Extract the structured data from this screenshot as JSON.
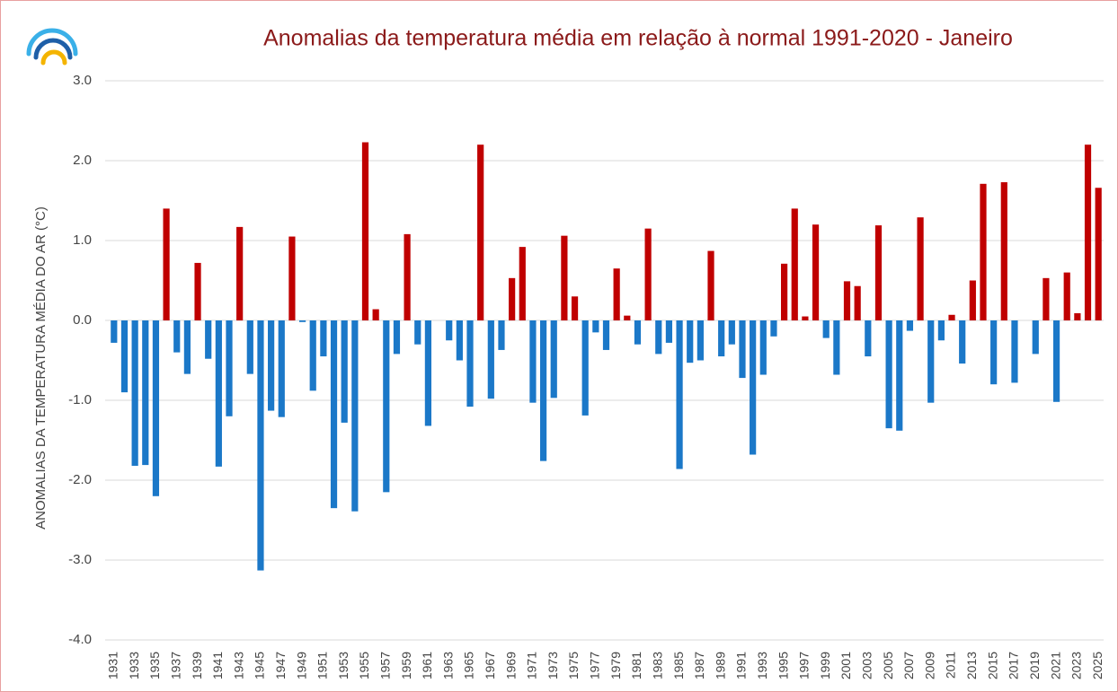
{
  "chart_data": {
    "type": "bar",
    "title": "Anomalias da temperatura média em relação à normal 1991-2020 - Janeiro",
    "y_label": "ANOMALIAS DA TEMPERATURA MÉDIA DO AR (°C)",
    "categories": [
      "1931",
      null,
      "1933",
      null,
      "1935",
      null,
      "1937",
      null,
      "1939",
      null,
      "1941",
      null,
      "1943",
      null,
      "1945",
      null,
      "1947",
      null,
      "1949",
      null,
      "1951",
      null,
      "1953",
      null,
      "1955",
      null,
      "1957",
      null,
      "1959",
      null,
      "1961",
      null,
      "1963",
      null,
      "1965",
      null,
      "1967",
      null,
      "1969",
      null,
      "1971",
      null,
      "1973",
      null,
      "1975",
      null,
      "1977",
      null,
      "1979",
      null,
      "1981",
      null,
      "1983",
      null,
      "1985",
      null,
      "1987",
      null,
      "1989",
      null,
      "1991",
      null,
      "1993",
      null,
      "1995",
      null,
      "1997",
      null,
      "1999",
      null,
      "2001",
      null,
      "2003",
      null,
      "2005",
      null,
      "2007",
      null,
      "2009",
      null,
      "2011",
      null,
      "2013",
      null,
      "2015",
      null,
      "2017",
      null,
      "2019",
      null,
      "2021",
      null,
      "2023",
      null,
      "2025"
    ],
    "values": [
      -0.28,
      -0.9,
      -1.82,
      -1.81,
      -2.2,
      1.4,
      -0.4,
      -0.67,
      0.72,
      -0.48,
      -1.83,
      -1.2,
      1.17,
      -0.67,
      -3.13,
      -1.13,
      -1.21,
      1.05,
      -0.02,
      -0.88,
      -0.45,
      -2.35,
      -1.28,
      -2.39,
      2.23,
      0.14,
      -2.15,
      -0.42,
      1.08,
      -0.3,
      -1.32,
      0,
      -0.25,
      -0.5,
      -1.08,
      2.2,
      -0.98,
      -0.37,
      0.53,
      0.92,
      -1.03,
      -1.76,
      -0.97,
      1.06,
      0.3,
      -1.19,
      -0.15,
      -0.37,
      0.65,
      0.06,
      -0.3,
      1.15,
      -0.42,
      -0.28,
      -1.86,
      -0.53,
      -0.5,
      0.87,
      -0.45,
      -0.3,
      -0.72,
      -1.68,
      -0.68,
      -0.2,
      0.71,
      1.4,
      0.05,
      1.2,
      -0.22,
      -0.68,
      0.49,
      0.43,
      -0.45,
      1.19,
      -1.35,
      -1.38,
      -0.13,
      1.29,
      -1.03,
      -0.25,
      0.07,
      -0.54,
      0.5,
      1.71,
      -0.8,
      1.73,
      -0.78,
      0,
      -0.42,
      0.53,
      -1.02,
      0.6,
      0.09,
      2.2,
      1.66
    ],
    "positive_color": "#c00000",
    "negative_color": "#1b78c8",
    "ylim": [
      -4,
      3
    ],
    "yticks": [
      {
        "value": -4,
        "label": "-4.0"
      },
      {
        "value": -3,
        "label": "-3.0"
      },
      {
        "value": -2,
        "label": "-2.0"
      },
      {
        "value": -1,
        "label": "-1.0"
      },
      {
        "value": 0,
        "label": "0.0"
      },
      {
        "value": 1,
        "label": "1.0"
      },
      {
        "value": 2,
        "label": "2.0"
      },
      {
        "value": 3,
        "label": "3.0"
      }
    ],
    "grid": true
  }
}
